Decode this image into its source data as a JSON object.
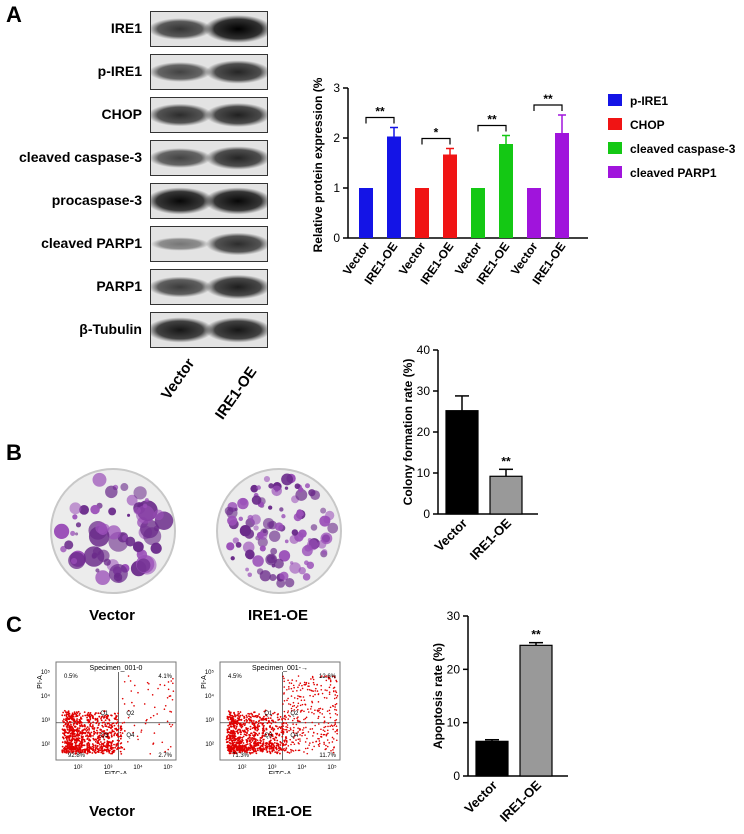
{
  "panels": {
    "a": "A",
    "b": "B",
    "c": "C"
  },
  "western_blot": {
    "rows": [
      {
        "label": "IRE1",
        "vector": 0.65,
        "oe": 1.0
      },
      {
        "label": "p-IRE1",
        "vector": 0.55,
        "oe": 0.75
      },
      {
        "label": "CHOP",
        "vector": 0.7,
        "oe": 0.78
      },
      {
        "label": "cleaved caspase-3",
        "vector": 0.55,
        "oe": 0.75
      },
      {
        "label": "procaspase-3",
        "vector": 0.95,
        "oe": 0.95
      },
      {
        "label": "cleaved PARP1",
        "vector": 0.2,
        "oe": 0.7
      },
      {
        "label": "PARP1",
        "vector": 0.6,
        "oe": 0.8
      },
      {
        "label": "β-Tubulin",
        "vector": 0.85,
        "oe": 0.85
      }
    ],
    "lanes": [
      "Vector",
      "IRE1-OE"
    ]
  },
  "dish_labels": [
    "Vector",
    "IRE1-OE"
  ],
  "flow": {
    "labels": [
      "Vector",
      "IRE1-OE"
    ],
    "specimens": [
      "Specimen_001-0",
      "Specimen_001-→"
    ],
    "quadrants": [
      {
        "q1": "0.5%",
        "q2": "4.1%",
        "q3": "92.8%",
        "q4": "2.7%"
      },
      {
        "q1": "4.5%",
        "q2": "12.6%",
        "q3": "71.3%",
        "q4": "11.7%"
      }
    ],
    "q_names": [
      "Q1",
      "Q2",
      "Q3",
      "Q4"
    ],
    "xaxis": "FITC-A",
    "yaxis": "PI-A",
    "ticks": [
      "10²",
      "10³",
      "10⁴",
      "10⁵"
    ]
  },
  "chart_data": [
    {
      "type": "bar",
      "ylabel": "Relative protein expression (%)",
      "ylim": [
        0,
        3
      ],
      "yticks": [
        0,
        1,
        2,
        3
      ],
      "categories": [
        "Vector",
        "IRE1-OE"
      ],
      "groups": [
        {
          "name": "p-IRE1",
          "color": "#1414e6",
          "values": [
            1,
            2.03
          ],
          "errors": [
            0,
            0.18
          ],
          "sig": "**"
        },
        {
          "name": "CHOP",
          "color": "#f01414",
          "values": [
            1,
            1.67
          ],
          "errors": [
            0,
            0.12
          ],
          "sig": "*"
        },
        {
          "name": "cleaved caspase-3",
          "color": "#14c814",
          "values": [
            1,
            1.88
          ],
          "errors": [
            0,
            0.17
          ],
          "sig": "**"
        },
        {
          "name": "cleaved PARP1",
          "color": "#a014dc",
          "values": [
            1,
            2.1
          ],
          "errors": [
            0,
            0.36
          ],
          "sig": "**"
        }
      ],
      "legend_position": "right"
    },
    {
      "type": "bar",
      "ylabel": "Colony formation rate (%)",
      "ylim": [
        0,
        40
      ],
      "yticks": [
        0,
        10,
        20,
        30,
        40
      ],
      "categories": [
        "Vector",
        "IRE1-OE"
      ],
      "values": [
        25.2,
        9.2
      ],
      "errors": [
        3.6,
        1.7
      ],
      "colors": [
        "#000000",
        "#999999"
      ],
      "sig": "**"
    },
    {
      "type": "bar",
      "ylabel": "Apoptosis rate (%)",
      "ylim": [
        0,
        30
      ],
      "yticks": [
        0,
        10,
        20,
        30
      ],
      "categories": [
        "Vector",
        "IRE1-OE"
      ],
      "values": [
        6.5,
        24.5
      ],
      "errors": [
        0.3,
        0.5
      ],
      "colors": [
        "#000000",
        "#999999"
      ],
      "sig": "**"
    }
  ]
}
